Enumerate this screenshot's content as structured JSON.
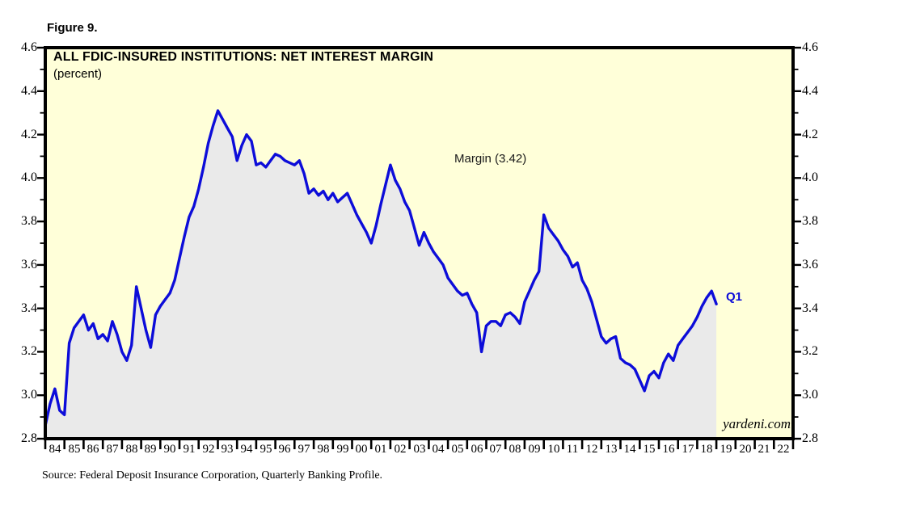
{
  "figure_label": "Figure 9.",
  "chart": {
    "title": "ALL FDIC-INSURED INSTITUTIONS: NET INTEREST MARGIN",
    "subtitle": "(percent)",
    "margin_annotation": "Margin (3.42)",
    "latest_point_label": "Q1",
    "watermark": "yardeni.com"
  },
  "source_note": "Source: Federal Deposit Insurance Corporation, Quarterly Banking Profile.",
  "colors": {
    "plot_background": "#FFFFD9",
    "area_fill": "#EAEAEA",
    "line": "#0D0DD9",
    "axis": "#000000"
  },
  "chart_data": {
    "type": "area",
    "title": "ALL FDIC-INSURED INSTITUTIONS: NET INTEREST MARGIN",
    "ylabel": "percent",
    "grid": false,
    "legend": "none",
    "xlim": [
      1984,
      2023
    ],
    "ylim": [
      2.8,
      4.6
    ],
    "y_major_step": 0.2,
    "y_minor_step": 0.1,
    "y_tick_labels": [
      "4.6",
      "4.4",
      "4.2",
      "4.0",
      "3.8",
      "3.6",
      "3.4",
      "3.2",
      "3.0",
      "2.8"
    ],
    "x_tick_labels": [
      "84",
      "85",
      "86",
      "87",
      "88",
      "89",
      "90",
      "91",
      "92",
      "93",
      "94",
      "95",
      "96",
      "97",
      "98",
      "99",
      "00",
      "01",
      "02",
      "03",
      "04",
      "05",
      "06",
      "07",
      "08",
      "09",
      "10",
      "11",
      "12",
      "13",
      "14",
      "15",
      "16",
      "17",
      "18",
      "19",
      "20",
      "21",
      "22"
    ],
    "x_start": 1984.0,
    "x_step": 0.25,
    "x_end": 2019.0,
    "annotation": {
      "text": "Margin (3.42)",
      "x": 2005.5,
      "y": 3.95
    },
    "series": [
      {
        "name": "Net Interest Margin",
        "latest_label": "Q1",
        "latest_value": 3.42,
        "values": [
          2.86,
          2.96,
          3.03,
          2.93,
          2.91,
          3.24,
          3.31,
          3.34,
          3.37,
          3.3,
          3.33,
          3.26,
          3.28,
          3.25,
          3.34,
          3.28,
          3.2,
          3.16,
          3.23,
          3.5,
          3.4,
          3.3,
          3.22,
          3.37,
          3.41,
          3.44,
          3.47,
          3.53,
          3.63,
          3.73,
          3.82,
          3.87,
          3.95,
          4.05,
          4.16,
          4.24,
          4.31,
          4.27,
          4.23,
          4.19,
          4.08,
          4.15,
          4.2,
          4.17,
          4.06,
          4.07,
          4.05,
          4.08,
          4.11,
          4.1,
          4.08,
          4.07,
          4.06,
          4.08,
          4.02,
          3.93,
          3.95,
          3.92,
          3.94,
          3.9,
          3.93,
          3.89,
          3.91,
          3.93,
          3.88,
          3.83,
          3.79,
          3.75,
          3.7,
          3.78,
          3.88,
          3.97,
          4.06,
          3.99,
          3.95,
          3.89,
          3.85,
          3.77,
          3.69,
          3.75,
          3.7,
          3.66,
          3.63,
          3.6,
          3.54,
          3.51,
          3.48,
          3.46,
          3.47,
          3.42,
          3.38,
          3.2,
          3.32,
          3.34,
          3.34,
          3.32,
          3.37,
          3.38,
          3.36,
          3.33,
          3.43,
          3.48,
          3.53,
          3.57,
          3.83,
          3.77,
          3.74,
          3.71,
          3.67,
          3.64,
          3.59,
          3.61,
          3.53,
          3.49,
          3.43,
          3.35,
          3.27,
          3.24,
          3.26,
          3.27,
          3.17,
          3.15,
          3.14,
          3.12,
          3.07,
          3.02,
          3.09,
          3.11,
          3.08,
          3.15,
          3.19,
          3.16,
          3.23,
          3.26,
          3.29,
          3.32,
          3.36,
          3.41,
          3.45,
          3.48,
          3.42
        ]
      }
    ]
  }
}
